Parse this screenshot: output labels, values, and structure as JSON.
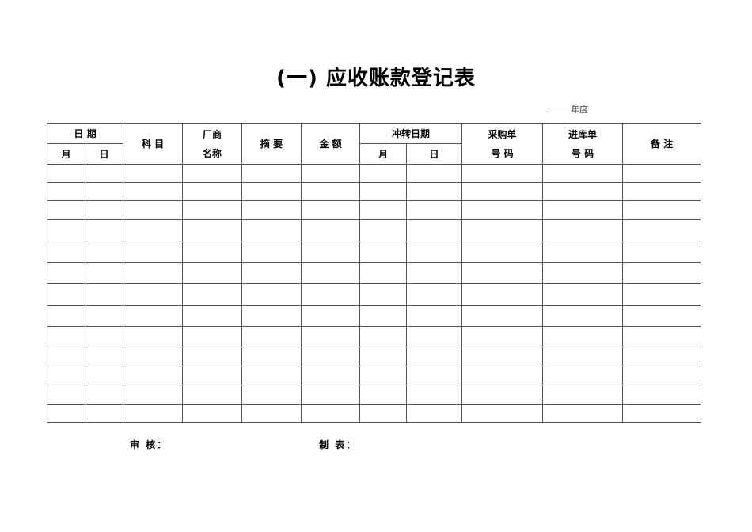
{
  "title": "(一) 应收账款登记表",
  "year_label": "年度",
  "headers": {
    "date": "日 期",
    "month": "月",
    "day": "日",
    "subject": "科 目",
    "vendor_1": "厂商",
    "vendor_2": "名称",
    "summary": "摘 要",
    "amount": "金 额",
    "reversal_date": "冲转日期",
    "po_1": "采购单",
    "po_2": "号 码",
    "receipt_1": "进库单",
    "receipt_2": "号 码",
    "remarks": "备 注"
  },
  "body_row_count": 13,
  "footer": {
    "reviewer": "审 核：",
    "preparer": "制 表："
  }
}
